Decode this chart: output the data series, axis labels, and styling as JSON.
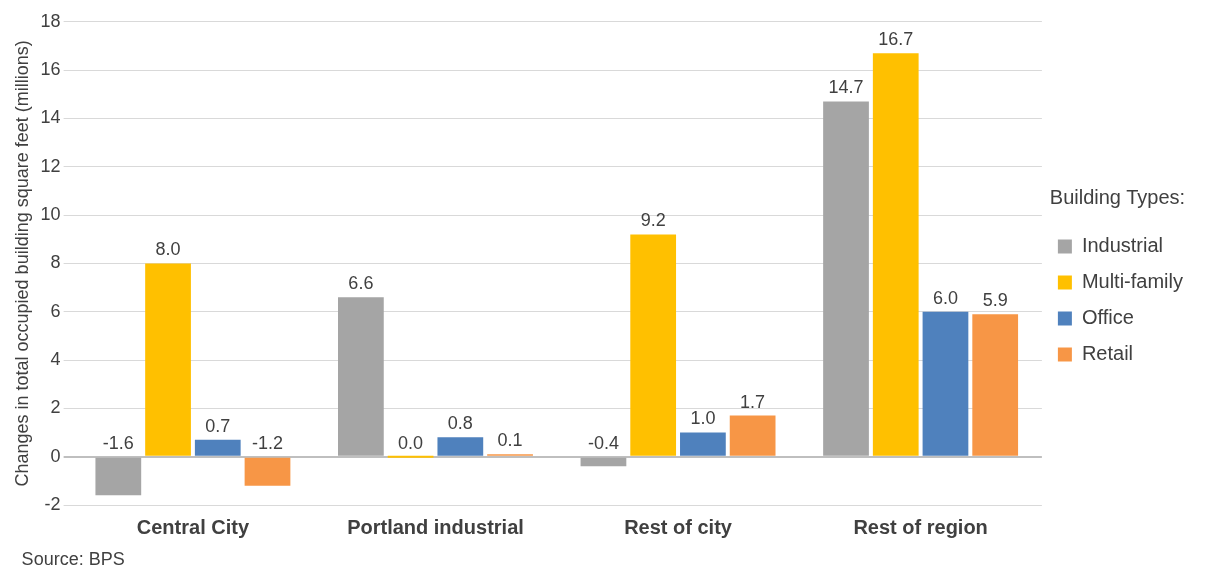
{
  "chart_data": {
    "type": "bar",
    "ylabel": "Changes in total occupied building square feet (millions)",
    "legend_title": "Building Types:",
    "categories": [
      "Central City",
      "Portland industrial",
      "Rest of city",
      "Rest of region"
    ],
    "series": [
      {
        "name": "Industrial",
        "color": "#a5a5a5",
        "values": [
          -1.6,
          6.6,
          -0.4,
          14.7
        ],
        "value_labels": [
          "-1.6",
          "6.6",
          "-0.4",
          "14.7"
        ]
      },
      {
        "name": "Multi-family",
        "color": "#ffc000",
        "values": [
          8.0,
          0.0,
          9.2,
          16.7
        ],
        "value_labels": [
          "8.0",
          "0.0",
          "9.2",
          "16.7"
        ]
      },
      {
        "name": "Office",
        "color": "#4f81bd",
        "values": [
          0.7,
          0.8,
          1.0,
          6.0
        ],
        "value_labels": [
          "0.7",
          "0.8",
          "1.0",
          "6.0"
        ]
      },
      {
        "name": "Retail",
        "color": "#f79646",
        "values": [
          -1.2,
          0.1,
          1.7,
          5.9
        ],
        "value_labels": [
          "-1.2",
          "0.1",
          "1.7",
          "5.9"
        ]
      }
    ],
    "ylim": [
      -2,
      18
    ],
    "yticks": [
      -2,
      0,
      2,
      4,
      6,
      8,
      10,
      12,
      14,
      16,
      18
    ],
    "grid": "y",
    "legend": "right",
    "annotations": [
      "Source: BPS"
    ]
  }
}
